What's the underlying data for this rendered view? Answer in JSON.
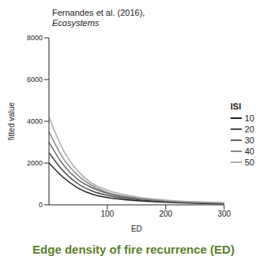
{
  "chart_data": {
    "type": "line",
    "title": "Fernandes et al. (2016),",
    "subtitle": "Ecosystems",
    "x_label": "ED",
    "y_label": "fitted value",
    "annotation": "Edge density of fire recurrence (ED)",
    "legend_title": "ISI",
    "legend": "right",
    "grid": false,
    "x": [
      0,
      25,
      50,
      75,
      100,
      150,
      200,
      250,
      300
    ],
    "xlim": [
      0,
      300
    ],
    "xticks": [
      100,
      200,
      300
    ],
    "ylim": [
      0,
      8000
    ],
    "yticks": [
      0,
      2000,
      4000,
      6000,
      8000
    ],
    "series": [
      {
        "name": "10",
        "color": "#222222",
        "values": [
          2000,
          1300,
          800,
          500,
          350,
          200,
          120,
          80,
          50
        ]
      },
      {
        "name": "20",
        "color": "#444444",
        "values": [
          2500,
          1600,
          1000,
          650,
          450,
          250,
          150,
          100,
          70
        ]
      },
      {
        "name": "30",
        "color": "#666666",
        "values": [
          3000,
          1900,
          1200,
          800,
          550,
          300,
          180,
          120,
          80
        ]
      },
      {
        "name": "40",
        "color": "#888888",
        "values": [
          3500,
          2200,
          1400,
          900,
          600,
          330,
          200,
          130,
          90
        ]
      },
      {
        "name": "50",
        "color": "#aaaaaa",
        "values": [
          4200,
          2600,
          1600,
          1000,
          700,
          380,
          230,
          150,
          100
        ]
      }
    ]
  }
}
